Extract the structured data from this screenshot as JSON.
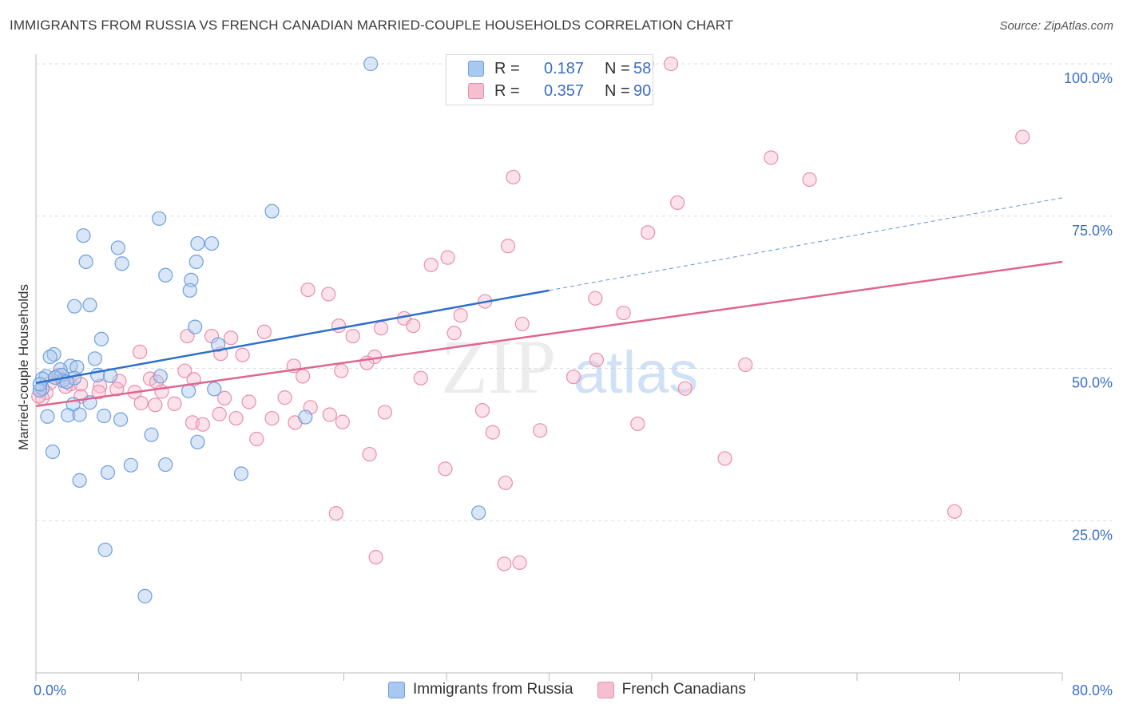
{
  "header": {
    "title": "IMMIGRANTS FROM RUSSIA VS FRENCH CANADIAN MARRIED-COUPLE HOUSEHOLDS CORRELATION CHART",
    "source": "Source: ZipAtlas.com"
  },
  "watermark": {
    "zip": "ZIP",
    "atlas": "atlas"
  },
  "legend_top": {
    "series": [
      {
        "r_label": "R =",
        "r_value": "0.187",
        "n_label": "N =",
        "n_value": "58"
      },
      {
        "r_label": "R =",
        "r_value": "0.357",
        "n_label": "N =",
        "n_value": "90"
      }
    ]
  },
  "legend_bottom": [
    "Immigrants from Russia",
    "French Canadians"
  ],
  "colors": {
    "blue_fill": "#a9c8f0",
    "blue_stroke": "#6f9fdd",
    "blue_line": "#2e6fcb",
    "pink_fill": "#f6bfd0",
    "pink_stroke": "#e98fab",
    "pink_line": "#e0658d",
    "axis_text": "#3a6fc4",
    "grid": "#dddddd"
  },
  "chart_data": {
    "type": "scatter",
    "title": "IMMIGRANTS FROM RUSSIA VS FRENCH CANADIAN MARRIED-COUPLE HOUSEHOLDS CORRELATION CHART",
    "xlabel": "",
    "ylabel": "Married-couple Households",
    "xlim": [
      0,
      80
    ],
    "ylim": [
      0,
      102
    ],
    "x_tick_labels": [
      "0.0%",
      "80.0%"
    ],
    "y_ticks": [
      25,
      50,
      75,
      100
    ],
    "y_tick_labels": [
      "25.0%",
      "50.0%",
      "75.0%",
      "100.0%"
    ],
    "grid": true,
    "legend_position": "top-center",
    "series": [
      {
        "name": "Immigrants from Russia",
        "r": 0.187,
        "n": 58,
        "trend": {
          "x0": 0,
          "y0": 47.6,
          "x1": 40,
          "y1": 62.8,
          "dashed_to_x": 80,
          "dashed_to_y": 78.0
        },
        "points": [
          [
            26.1,
            100
          ],
          [
            18.4,
            75.8
          ],
          [
            9.6,
            74.6
          ],
          [
            3.7,
            71.8
          ],
          [
            6.4,
            69.8
          ],
          [
            12.6,
            70.5
          ],
          [
            13.7,
            70.5
          ],
          [
            3.9,
            67.5
          ],
          [
            6.7,
            67.2
          ],
          [
            12.5,
            67.5
          ],
          [
            10.1,
            65.3
          ],
          [
            12.1,
            64.5
          ],
          [
            12.0,
            62.8
          ],
          [
            4.2,
            60.4
          ],
          [
            3.0,
            60.2
          ],
          [
            12.4,
            56.8
          ],
          [
            5.1,
            54.8
          ],
          [
            14.2,
            53.9
          ],
          [
            1.4,
            52.3
          ],
          [
            1.1,
            51.9
          ],
          [
            4.6,
            51.6
          ],
          [
            2.7,
            50.4
          ],
          [
            3.2,
            50.2
          ],
          [
            1.9,
            49.8
          ],
          [
            0.8,
            48.7
          ],
          [
            2.0,
            48.9
          ],
          [
            4.8,
            48.9
          ],
          [
            5.8,
            48.8
          ],
          [
            3.0,
            48.4
          ],
          [
            0.5,
            48.3
          ],
          [
            2.1,
            48.0
          ],
          [
            9.7,
            48.7
          ],
          [
            0.5,
            46.7
          ],
          [
            0.3,
            46.4
          ],
          [
            11.9,
            46.3
          ],
          [
            13.9,
            46.6
          ],
          [
            4.2,
            44.4
          ],
          [
            2.9,
            44.1
          ],
          [
            0.9,
            42.1
          ],
          [
            2.5,
            42.3
          ],
          [
            3.4,
            42.4
          ],
          [
            5.3,
            42.2
          ],
          [
            6.6,
            41.6
          ],
          [
            21.0,
            42.0
          ],
          [
            9.0,
            39.1
          ],
          [
            12.6,
            37.9
          ],
          [
            1.3,
            36.3
          ],
          [
            7.4,
            34.1
          ],
          [
            10.1,
            34.2
          ],
          [
            5.6,
            32.9
          ],
          [
            16.0,
            32.7
          ],
          [
            3.4,
            31.6
          ],
          [
            34.5,
            26.3
          ],
          [
            5.4,
            20.2
          ],
          [
            8.5,
            12.6
          ],
          [
            0.3,
            47.4
          ],
          [
            1.5,
            48.5
          ],
          [
            2.4,
            47.8
          ]
        ]
      },
      {
        "name": "French Canadians",
        "r": 0.357,
        "n": 90,
        "trend": {
          "x0": 0,
          "y0": 43.8,
          "x1": 80,
          "y1": 67.5
        },
        "points": [
          [
            47.6,
            100
          ],
          [
            49.5,
            100
          ],
          [
            76.9,
            88.0
          ],
          [
            57.3,
            84.6
          ],
          [
            60.3,
            81.0
          ],
          [
            37.2,
            81.4
          ],
          [
            50.0,
            77.2
          ],
          [
            47.7,
            72.3
          ],
          [
            36.8,
            70.1
          ],
          [
            32.1,
            68.2
          ],
          [
            30.8,
            67.0
          ],
          [
            21.2,
            62.9
          ],
          [
            22.8,
            62.2
          ],
          [
            43.6,
            61.5
          ],
          [
            35.0,
            61.0
          ],
          [
            33.1,
            58.7
          ],
          [
            28.7,
            58.2
          ],
          [
            29.4,
            57.0
          ],
          [
            23.6,
            57.0
          ],
          [
            26.9,
            56.6
          ],
          [
            37.9,
            57.3
          ],
          [
            17.8,
            56.0
          ],
          [
            24.7,
            55.3
          ],
          [
            32.6,
            55.8
          ],
          [
            11.8,
            55.3
          ],
          [
            13.7,
            55.3
          ],
          [
            15.2,
            55.0
          ],
          [
            14.4,
            52.4
          ],
          [
            16.1,
            52.2
          ],
          [
            8.1,
            52.7
          ],
          [
            26.4,
            51.9
          ],
          [
            25.8,
            50.9
          ],
          [
            20.1,
            50.4
          ],
          [
            43.7,
            51.4
          ],
          [
            55.3,
            50.6
          ],
          [
            11.6,
            49.6
          ],
          [
            23.8,
            49.6
          ],
          [
            20.8,
            48.7
          ],
          [
            30.0,
            48.4
          ],
          [
            41.9,
            48.6
          ],
          [
            8.9,
            48.3
          ],
          [
            12.3,
            48.2
          ],
          [
            9.4,
            47.8
          ],
          [
            6.5,
            47.9
          ],
          [
            2.7,
            47.4
          ],
          [
            1.1,
            47.6
          ],
          [
            3.5,
            47.4
          ],
          [
            5.0,
            47.1
          ],
          [
            6.3,
            46.6
          ],
          [
            7.7,
            46.1
          ],
          [
            9.8,
            46.2
          ],
          [
            4.9,
            46.1
          ],
          [
            3.5,
            45.4
          ],
          [
            0.8,
            46.0
          ],
          [
            14.7,
            45.1
          ],
          [
            19.4,
            45.2
          ],
          [
            16.6,
            44.5
          ],
          [
            8.2,
            44.3
          ],
          [
            9.3,
            44.0
          ],
          [
            10.8,
            44.2
          ],
          [
            0.5,
            45.1
          ],
          [
            21.4,
            43.6
          ],
          [
            34.8,
            43.1
          ],
          [
            14.3,
            42.5
          ],
          [
            15.6,
            41.8
          ],
          [
            12.2,
            41.1
          ],
          [
            18.4,
            41.8
          ],
          [
            20.2,
            41.1
          ],
          [
            27.2,
            42.8
          ],
          [
            22.9,
            42.4
          ],
          [
            23.9,
            41.2
          ],
          [
            13.0,
            40.8
          ],
          [
            17.2,
            38.4
          ],
          [
            35.6,
            39.5
          ],
          [
            39.3,
            39.8
          ],
          [
            46.9,
            40.9
          ],
          [
            26.0,
            35.9
          ],
          [
            53.7,
            35.2
          ],
          [
            31.9,
            33.5
          ],
          [
            36.6,
            31.2
          ],
          [
            23.4,
            26.2
          ],
          [
            71.6,
            26.5
          ],
          [
            26.5,
            19.0
          ],
          [
            36.5,
            17.9
          ],
          [
            37.7,
            18.1
          ],
          [
            50.6,
            46.7
          ],
          [
            1.7,
            48.8
          ],
          [
            2.3,
            47.0
          ],
          [
            0.2,
            45.4
          ],
          [
            45.8,
            59.1
          ]
        ]
      }
    ]
  }
}
